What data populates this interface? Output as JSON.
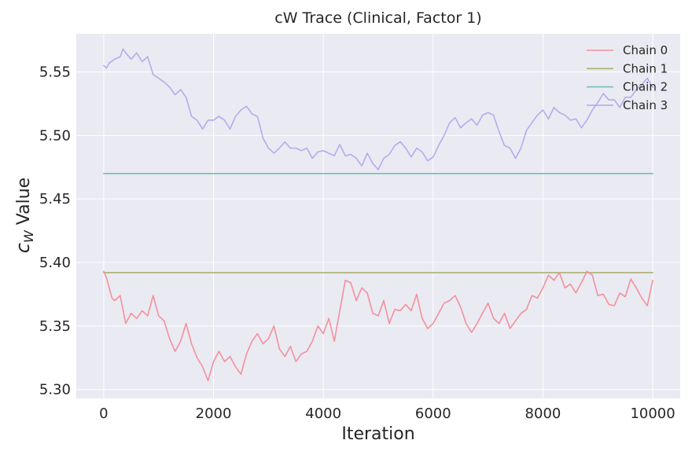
{
  "chart_data": {
    "type": "line",
    "title": "cW Trace (Clinical, Factor 1)",
    "xlabel": "Iteration",
    "ylabel": "cW Value",
    "ylabel_main": "c",
    "ylabel_sub": "W",
    "ylabel_rest": " Value",
    "xlim": [
      -500,
      10500
    ],
    "ylim": [
      5.293,
      5.58
    ],
    "xticks": [
      0,
      2000,
      4000,
      6000,
      8000,
      10000
    ],
    "yticks": [
      5.3,
      5.35,
      5.4,
      5.45,
      5.5,
      5.55
    ],
    "ytick_labels": [
      "5.30",
      "5.35",
      "5.40",
      "5.45",
      "5.50",
      "5.55"
    ],
    "grid": true,
    "legend_position": "top-right",
    "series": [
      {
        "name": "Chain 0",
        "color": "#f4909c",
        "x": [
          0,
          50,
          100,
          150,
          200,
          300,
          400,
          500,
          600,
          700,
          800,
          900,
          1000,
          1100,
          1200,
          1300,
          1400,
          1500,
          1600,
          1700,
          1800,
          1900,
          2000,
          2100,
          2200,
          2300,
          2400,
          2500,
          2600,
          2700,
          2800,
          2900,
          3000,
          3100,
          3200,
          3300,
          3400,
          3500,
          3600,
          3700,
          3800,
          3900,
          4000,
          4100,
          4200,
          4300,
          4400,
          4500,
          4600,
          4700,
          4800,
          4900,
          5000,
          5100,
          5200,
          5300,
          5400,
          5500,
          5600,
          5700,
          5800,
          5900,
          6000,
          6100,
          6200,
          6300,
          6400,
          6500,
          6600,
          6700,
          6800,
          6900,
          7000,
          7100,
          7200,
          7300,
          7400,
          7500,
          7600,
          7700,
          7800,
          7900,
          8000,
          8100,
          8200,
          8300,
          8400,
          8500,
          8600,
          8700,
          8800,
          8900,
          9000,
          9100,
          9200,
          9300,
          9400,
          9500,
          9600,
          9700,
          9800,
          9900,
          10000
        ],
        "values": [
          5.393,
          5.388,
          5.38,
          5.372,
          5.37,
          5.374,
          5.352,
          5.36,
          5.356,
          5.362,
          5.358,
          5.374,
          5.358,
          5.354,
          5.34,
          5.33,
          5.338,
          5.352,
          5.336,
          5.325,
          5.318,
          5.307,
          5.322,
          5.33,
          5.322,
          5.326,
          5.318,
          5.312,
          5.328,
          5.338,
          5.344,
          5.336,
          5.34,
          5.35,
          5.332,
          5.326,
          5.334,
          5.322,
          5.328,
          5.33,
          5.338,
          5.35,
          5.344,
          5.356,
          5.338,
          5.362,
          5.386,
          5.384,
          5.37,
          5.38,
          5.376,
          5.36,
          5.358,
          5.37,
          5.352,
          5.363,
          5.362,
          5.367,
          5.362,
          5.375,
          5.356,
          5.348,
          5.352,
          5.36,
          5.368,
          5.37,
          5.374,
          5.365,
          5.352,
          5.345,
          5.352,
          5.36,
          5.368,
          5.356,
          5.352,
          5.36,
          5.348,
          5.354,
          5.36,
          5.363,
          5.374,
          5.372,
          5.38,
          5.39,
          5.386,
          5.392,
          5.38,
          5.383,
          5.376,
          5.384,
          5.393,
          5.39,
          5.374,
          5.375,
          5.367,
          5.366,
          5.376,
          5.373,
          5.387,
          5.38,
          5.372,
          5.366,
          5.386
        ]
      },
      {
        "name": "Chain 1",
        "color": "#a9b073",
        "x": [
          0,
          10000
        ],
        "values": [
          5.392,
          5.392
        ]
      },
      {
        "name": "Chain 2",
        "color": "#6cc3b7",
        "x": [
          0,
          10000
        ],
        "values": [
          5.47,
          5.47
        ]
      },
      {
        "name": "Chain 3",
        "color": "#b5abee",
        "x": [
          0,
          50,
          100,
          200,
          300,
          350,
          400,
          500,
          600,
          700,
          800,
          900,
          1000,
          1100,
          1200,
          1300,
          1400,
          1500,
          1600,
          1700,
          1800,
          1900,
          2000,
          2100,
          2200,
          2300,
          2400,
          2500,
          2600,
          2700,
          2800,
          2900,
          3000,
          3100,
          3200,
          3300,
          3400,
          3500,
          3600,
          3700,
          3800,
          3900,
          4000,
          4100,
          4200,
          4300,
          4400,
          4500,
          4600,
          4700,
          4800,
          4900,
          5000,
          5100,
          5200,
          5300,
          5400,
          5500,
          5600,
          5700,
          5800,
          5900,
          6000,
          6100,
          6200,
          6300,
          6400,
          6500,
          6600,
          6700,
          6800,
          6900,
          7000,
          7100,
          7200,
          7300,
          7400,
          7500,
          7600,
          7700,
          7800,
          7900,
          8000,
          8100,
          8200,
          8300,
          8400,
          8500,
          8600,
          8700,
          8800,
          8900,
          9000,
          9100,
          9200,
          9300,
          9400,
          9500,
          9600,
          9700,
          9800,
          9900,
          10000
        ],
        "values": [
          5.555,
          5.553,
          5.557,
          5.56,
          5.562,
          5.568,
          5.565,
          5.56,
          5.565,
          5.558,
          5.562,
          5.548,
          5.545,
          5.542,
          5.538,
          5.532,
          5.536,
          5.53,
          5.515,
          5.512,
          5.505,
          5.512,
          5.512,
          5.515,
          5.512,
          5.505,
          5.515,
          5.52,
          5.523,
          5.517,
          5.515,
          5.498,
          5.49,
          5.486,
          5.49,
          5.495,
          5.49,
          5.49,
          5.488,
          5.49,
          5.482,
          5.487,
          5.488,
          5.486,
          5.484,
          5.493,
          5.484,
          5.485,
          5.482,
          5.476,
          5.486,
          5.478,
          5.473,
          5.482,
          5.485,
          5.492,
          5.495,
          5.49,
          5.483,
          5.49,
          5.487,
          5.48,
          5.483,
          5.492,
          5.5,
          5.51,
          5.514,
          5.506,
          5.51,
          5.513,
          5.508,
          5.516,
          5.518,
          5.516,
          5.503,
          5.492,
          5.49,
          5.482,
          5.49,
          5.504,
          5.51,
          5.516,
          5.52,
          5.513,
          5.522,
          5.518,
          5.516,
          5.512,
          5.513,
          5.506,
          5.512,
          5.52,
          5.526,
          5.533,
          5.528,
          5.528,
          5.522,
          5.53,
          5.53,
          5.536,
          5.54,
          5.545,
          5.538
        ]
      }
    ]
  }
}
